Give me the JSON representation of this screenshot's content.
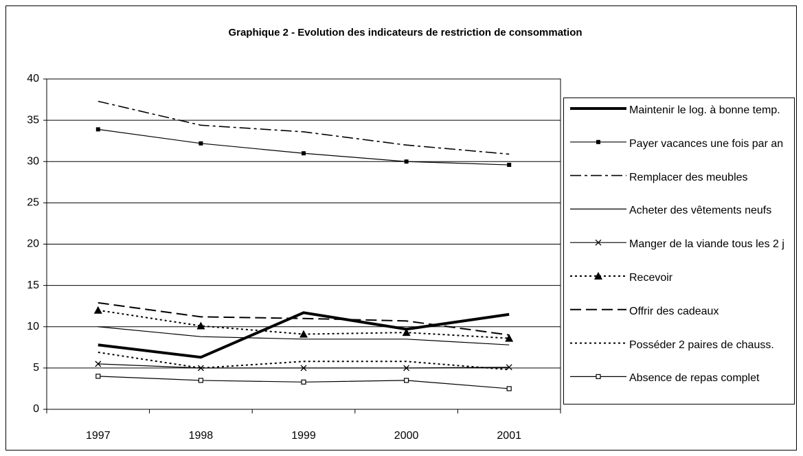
{
  "chart_data": {
    "type": "line",
    "title": "Graphique 2 - Evolution des indicateurs de restriction de consommation",
    "categories": [
      "1997",
      "1998",
      "1999",
      "2000",
      "2001"
    ],
    "ylim": [
      0,
      40
    ],
    "yticks": [
      0,
      5,
      10,
      15,
      20,
      25,
      30,
      35,
      40
    ],
    "grid": true,
    "legend": "right",
    "series": [
      {
        "name": "Maintenir le log. à bonne temp.",
        "color": "#000000",
        "line_style": "thick",
        "marker": "none",
        "values": [
          7.8,
          6.3,
          11.7,
          9.7,
          11.5
        ]
      },
      {
        "name": "Payer vacances une fois par an",
        "color": "#000000",
        "line_style": "solid",
        "marker": "square",
        "values": [
          33.9,
          32.2,
          31.0,
          30.0,
          29.6
        ]
      },
      {
        "name": "Remplacer des meubles",
        "color": "#000000",
        "line_style": "dashdot",
        "marker": "none",
        "values": [
          37.3,
          34.4,
          33.6,
          32.0,
          30.9
        ]
      },
      {
        "name": "Acheter des vêtements neufs",
        "color": "#000000",
        "line_style": "solid",
        "marker": "none",
        "values": [
          10.0,
          8.8,
          8.5,
          8.5,
          7.8
        ]
      },
      {
        "name": "Manger de la viande tous les 2 j",
        "color": "#000000",
        "line_style": "solid",
        "marker": "x",
        "values": [
          5.5,
          5.0,
          5.0,
          5.0,
          5.1
        ]
      },
      {
        "name": "Recevoir",
        "color": "#000000",
        "line_style": "dotted",
        "marker": "triangle",
        "values": [
          12.0,
          10.1,
          9.1,
          9.3,
          8.6
        ]
      },
      {
        "name": "Offrir des cadeaux",
        "color": "#000000",
        "line_style": "dashed",
        "marker": "none",
        "values": [
          12.9,
          11.2,
          11.0,
          10.7,
          9.0
        ]
      },
      {
        "name": "Posséder 2 paires de chauss.",
        "color": "#000000",
        "line_style": "dotted",
        "marker": "none",
        "values": [
          6.9,
          5.0,
          5.8,
          5.8,
          4.8
        ]
      },
      {
        "name": "Absence de repas complet",
        "color": "#000000",
        "line_style": "solid",
        "marker": "open-square",
        "values": [
          4.0,
          3.5,
          3.3,
          3.5,
          2.5
        ]
      }
    ]
  }
}
